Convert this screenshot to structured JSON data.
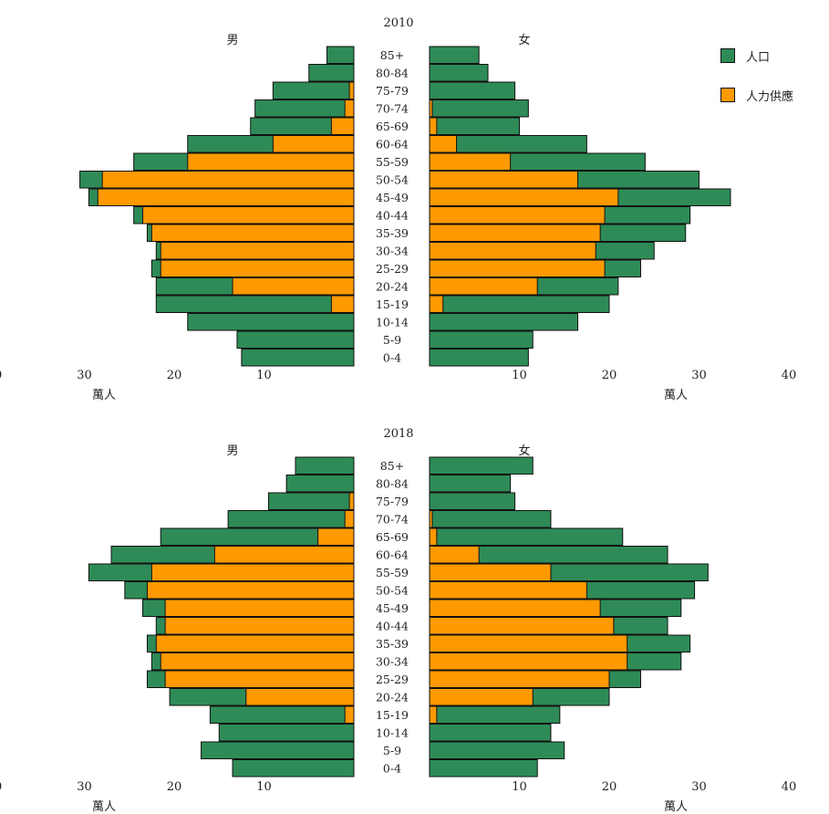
{
  "chart_data": [
    {
      "type": "bar",
      "title": "2010",
      "left_label": "男",
      "right_label": "女",
      "unit_label": "萬人",
      "xlim": [
        0,
        40
      ],
      "x_ticks": [
        "10",
        "20",
        "30",
        "40"
      ],
      "categories": [
        "85+",
        "80-84",
        "75-79",
        "70-74",
        "65-69",
        "60-64",
        "55-59",
        "50-54",
        "45-49",
        "40-44",
        "35-39",
        "30-34",
        "25-29",
        "20-24",
        "15-19",
        "10-14",
        "5-9",
        "0-4"
      ],
      "series": [
        {
          "name": "人口",
          "side": "男",
          "values": [
            3.0,
            5.0,
            9.0,
            11.0,
            11.5,
            18.5,
            24.5,
            30.5,
            29.5,
            24.5,
            23.0,
            22.0,
            22.5,
            22.0,
            22.0,
            18.5,
            13.0,
            12.5
          ]
        },
        {
          "name": "人力供應",
          "side": "男",
          "values": [
            0,
            0,
            0.5,
            1.0,
            2.5,
            9.0,
            18.5,
            28.0,
            28.5,
            23.5,
            22.5,
            21.5,
            21.5,
            13.5,
            2.5,
            0,
            0,
            0
          ]
        },
        {
          "name": "人口",
          "side": "女",
          "values": [
            5.5,
            6.5,
            9.5,
            11.0,
            10.0,
            17.5,
            24.0,
            30.0,
            33.5,
            29.0,
            28.5,
            25.0,
            23.5,
            21.0,
            20.0,
            16.5,
            11.5,
            11.0
          ]
        },
        {
          "name": "人力供應",
          "side": "女",
          "values": [
            0,
            0,
            0,
            0.3,
            0.8,
            3.0,
            9.0,
            16.5,
            21.0,
            19.5,
            19.0,
            18.5,
            19.5,
            12.0,
            1.5,
            0,
            0,
            0
          ]
        }
      ]
    },
    {
      "type": "bar",
      "title": "2018",
      "left_label": "男",
      "right_label": "女",
      "unit_label": "萬人",
      "xlim": [
        0,
        40
      ],
      "x_ticks": [
        "10",
        "20",
        "30",
        "40"
      ],
      "categories": [
        "85+",
        "80-84",
        "75-79",
        "70-74",
        "65-69",
        "60-64",
        "55-59",
        "50-54",
        "45-49",
        "40-44",
        "35-39",
        "30-34",
        "25-29",
        "20-24",
        "15-19",
        "10-14",
        "5-9",
        "0-4"
      ],
      "series": [
        {
          "name": "人口",
          "side": "男",
          "values": [
            6.5,
            7.5,
            9.5,
            14.0,
            21.5,
            27.0,
            29.5,
            25.5,
            23.5,
            22.0,
            23.0,
            22.5,
            23.0,
            20.5,
            16.0,
            15.0,
            17.0,
            13.5
          ]
        },
        {
          "name": "人力供應",
          "side": "男",
          "values": [
            0,
            0,
            0.5,
            1.0,
            4.0,
            15.5,
            22.5,
            23.0,
            21.0,
            21.0,
            22.0,
            21.5,
            21.0,
            12.0,
            1.0,
            0,
            0,
            0
          ]
        },
        {
          "name": "人口",
          "side": "女",
          "values": [
            11.5,
            9.0,
            9.5,
            13.5,
            21.5,
            26.5,
            31.0,
            29.5,
            28.0,
            26.5,
            29.0,
            28.0,
            23.5,
            20.0,
            14.5,
            13.5,
            15.0,
            12.0
          ]
        },
        {
          "name": "人力供應",
          "side": "女",
          "values": [
            0,
            0,
            0,
            0.3,
            0.8,
            5.5,
            13.5,
            17.5,
            19.0,
            20.5,
            22.0,
            22.0,
            20.0,
            11.5,
            0.8,
            0,
            0,
            0
          ]
        }
      ]
    }
  ],
  "legend": [
    {
      "label": "人口",
      "color": "#2e8b57"
    },
    {
      "label": "人力供應",
      "color": "#ff9900"
    }
  ],
  "colors": {
    "population": "#2e8b57",
    "labor": "#ff9900",
    "outline": "#111111"
  }
}
